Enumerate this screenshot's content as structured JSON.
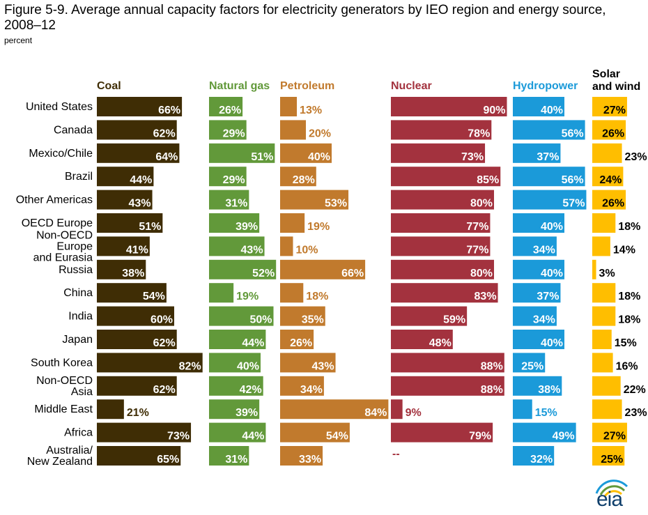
{
  "figure": {
    "title": "Figure 5-9. Average annual capacity factors for electricity generators by IEO region and energy source, 2008–12",
    "unit": "percent",
    "logo_text": "eia"
  },
  "chart_data": {
    "type": "bar",
    "orientation": "horizontal",
    "layout": "small-multiples",
    "xlim": [
      0,
      100
    ],
    "categories": [
      "United States",
      "Canada",
      "Mexico/Chile",
      "Brazil",
      "Other Americas",
      "OECD Europe",
      "Non-OECD Europe and Eurasia",
      "Russia",
      "China",
      "India",
      "Japan",
      "South Korea",
      "Non-OECD Asia",
      "Middle East",
      "Africa",
      "Australia/ New Zealand"
    ],
    "series": [
      {
        "name": "Coal",
        "color": "#3f2d05",
        "values": [
          66,
          62,
          64,
          44,
          43,
          51,
          41,
          38,
          54,
          60,
          62,
          82,
          62,
          21,
          73,
          65
        ],
        "labels": [
          "66%",
          "62%",
          "64%",
          "44%",
          "43%",
          "51%",
          "41%",
          "38%",
          "54%",
          "60%",
          "62%",
          "82%",
          "62%",
          "21%",
          "73%",
          "65%"
        ]
      },
      {
        "name": "Natural gas",
        "color": "#62993a",
        "values": [
          26,
          29,
          51,
          29,
          31,
          39,
          43,
          52,
          19,
          50,
          44,
          40,
          42,
          39,
          44,
          31
        ],
        "labels": [
          "26%",
          "29%",
          "51%",
          "29%",
          "31%",
          "39%",
          "43%",
          "52%",
          "19%",
          "50%",
          "44%",
          "40%",
          "42%",
          "39%",
          "44%",
          "31%"
        ]
      },
      {
        "name": "Petroleum",
        "color": "#c17a2d",
        "values": [
          13,
          20,
          40,
          28,
          53,
          19,
          10,
          66,
          18,
          35,
          26,
          43,
          34,
          84,
          54,
          33
        ],
        "labels": [
          "13%",
          "20%",
          "40%",
          "28%",
          "53%",
          "19%",
          "10%",
          "66%",
          "18%",
          "35%",
          "26%",
          "43%",
          "34%",
          "84%",
          "54%",
          "33%"
        ]
      },
      {
        "name": "Nuclear",
        "color": "#a3323e",
        "values": [
          90,
          78,
          73,
          85,
          80,
          77,
          77,
          80,
          83,
          59,
          48,
          88,
          88,
          9,
          79,
          null
        ],
        "labels": [
          "90%",
          "78%",
          "73%",
          "85%",
          "80%",
          "77%",
          "77%",
          "80%",
          "83%",
          "59%",
          "48%",
          "88%",
          "88%",
          "9%",
          "79%",
          "--"
        ]
      },
      {
        "name": "Hydropower",
        "color": "#1b9ad9",
        "values": [
          40,
          56,
          37,
          56,
          57,
          40,
          34,
          40,
          37,
          34,
          40,
          25,
          38,
          15,
          49,
          32
        ],
        "labels": [
          "40%",
          "56%",
          "37%",
          "56%",
          "57%",
          "40%",
          "34%",
          "40%",
          "37%",
          "34%",
          "40%",
          "25%",
          "38%",
          "15%",
          "49%",
          "32%"
        ]
      },
      {
        "name": "Solar and wind",
        "color": "#ffbe00",
        "values": [
          27,
          26,
          23,
          24,
          26,
          18,
          14,
          3,
          18,
          18,
          15,
          16,
          22,
          23,
          27,
          25
        ],
        "labels": [
          "27%",
          "26%",
          "23%",
          "24%",
          "26%",
          "18%",
          "14%",
          "3%",
          "18%",
          "18%",
          "15%",
          "16%",
          "22%",
          "23%",
          "27%",
          "25%"
        ]
      }
    ]
  }
}
